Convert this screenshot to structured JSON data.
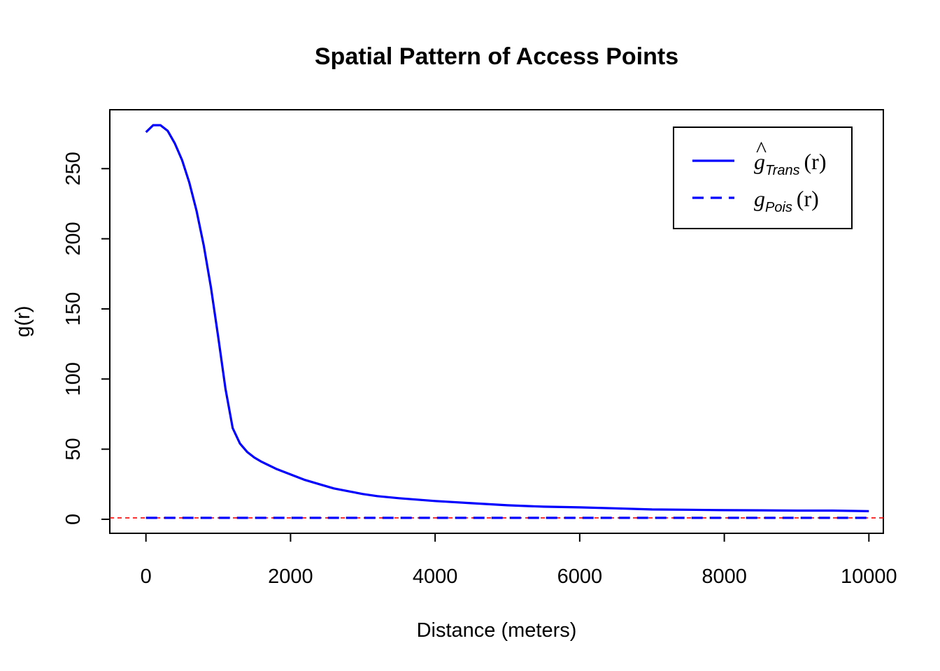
{
  "chart_data": {
    "type": "line",
    "title": "Spatial Pattern of Access Points",
    "xlabel": "Distance (meters)",
    "ylabel": "g(r)",
    "xlim": [
      -500,
      10200
    ],
    "ylim": [
      -10,
      292
    ],
    "grid": false,
    "legend_position": "top-right",
    "x_ticks": [
      0,
      2000,
      4000,
      6000,
      8000,
      10000
    ],
    "x_tick_labels": [
      "0",
      "2000",
      "4000",
      "6000",
      "8000",
      "10000"
    ],
    "y_ticks": [
      0,
      50,
      100,
      150,
      200,
      250
    ],
    "y_tick_labels": [
      "0",
      "50",
      "100",
      "150",
      "200",
      "250"
    ],
    "series": [
      {
        "name": "ĝ_Trans(r)",
        "legend_symbol": "g",
        "legend_hat": "^",
        "legend_subscript": "Trans",
        "legend_arg": "(r)",
        "color": "#0000ff",
        "line_style": "solid",
        "x": [
          0,
          100,
          200,
          300,
          400,
          500,
          600,
          700,
          800,
          900,
          1000,
          1100,
          1200,
          1300,
          1400,
          1500,
          1600,
          1800,
          2000,
          2200,
          2400,
          2600,
          2800,
          3000,
          3200,
          3500,
          4000,
          4500,
          5000,
          5500,
          6000,
          6500,
          7000,
          7500,
          8000,
          8500,
          9000,
          9500,
          10000
        ],
        "y": [
          276,
          281,
          281,
          277,
          268,
          256,
          240,
          220,
          195,
          165,
          130,
          93,
          65,
          54,
          48,
          44,
          41,
          36,
          32,
          28,
          25,
          22,
          20,
          18,
          16.5,
          15,
          13,
          11.5,
          10,
          9,
          8.5,
          7.8,
          7,
          6.8,
          6.5,
          6.4,
          6.2,
          6.2,
          5.8
        ]
      },
      {
        "name": "g_Pois(r)",
        "legend_symbol": "g",
        "legend_subscript": "Pois",
        "legend_arg": "(r)",
        "color": "#0000ff",
        "line_style": "dashed",
        "x": [
          0,
          10000
        ],
        "y": [
          1,
          1
        ]
      }
    ],
    "reference_line": {
      "y": 1,
      "color": "#ff0000",
      "line_style": "dashed"
    }
  }
}
